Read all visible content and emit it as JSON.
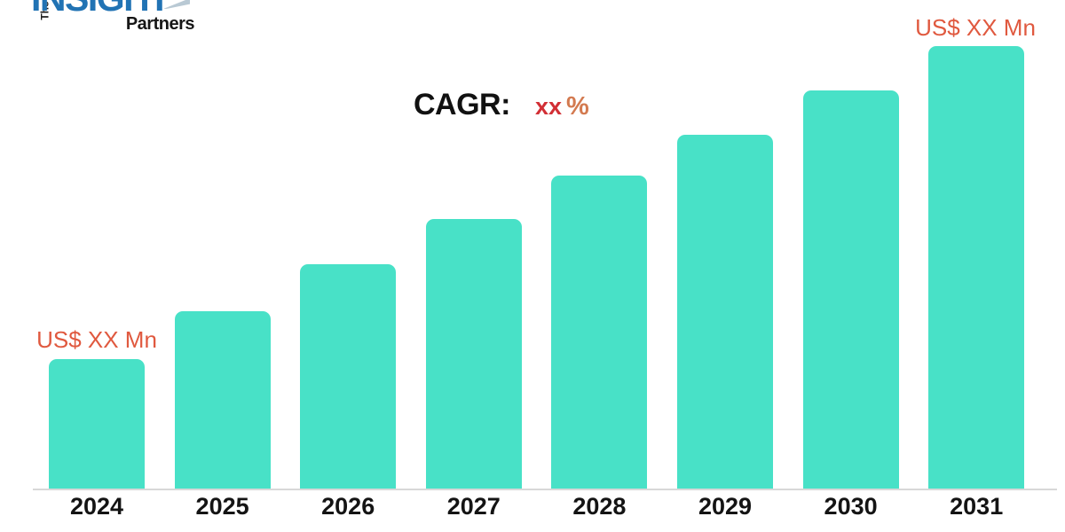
{
  "logo": {
    "prefix": "The",
    "title": "INSIGHT",
    "subtitle": "Partners"
  },
  "annotation": {
    "label": "CAGR:",
    "value": "xx",
    "unit": "%"
  },
  "bar_labels": {
    "first": "US$ XX Mn",
    "last": "US$ XX Mn"
  },
  "chart_data": {
    "type": "bar",
    "categories": [
      "2024",
      "2025",
      "2026",
      "2027",
      "2028",
      "2029",
      "2030",
      "2031"
    ],
    "values": [
      29.4,
      40.2,
      50.8,
      61.0,
      70.8,
      80.0,
      90.0,
      100.0
    ],
    "title": "",
    "xlabel": "",
    "ylabel": "",
    "ylim": [
      0,
      100
    ],
    "grid": false,
    "legend": false,
    "bar_color": "#48e1c7",
    "first_bar_label": "US$ XX Mn",
    "last_bar_label": "US$ XX Mn",
    "annotation": "CAGR: xx %"
  },
  "colors": {
    "bar": "#48e1c7",
    "value_label": "#e0593f",
    "cagr_label": "#111111",
    "cagr_value": "#d22f35",
    "cagr_unit": "#d37a50",
    "axis_line": "#d8d8d8",
    "year_label": "#141414",
    "logo_blue": "#2173b4",
    "logo_black": "#161616"
  }
}
